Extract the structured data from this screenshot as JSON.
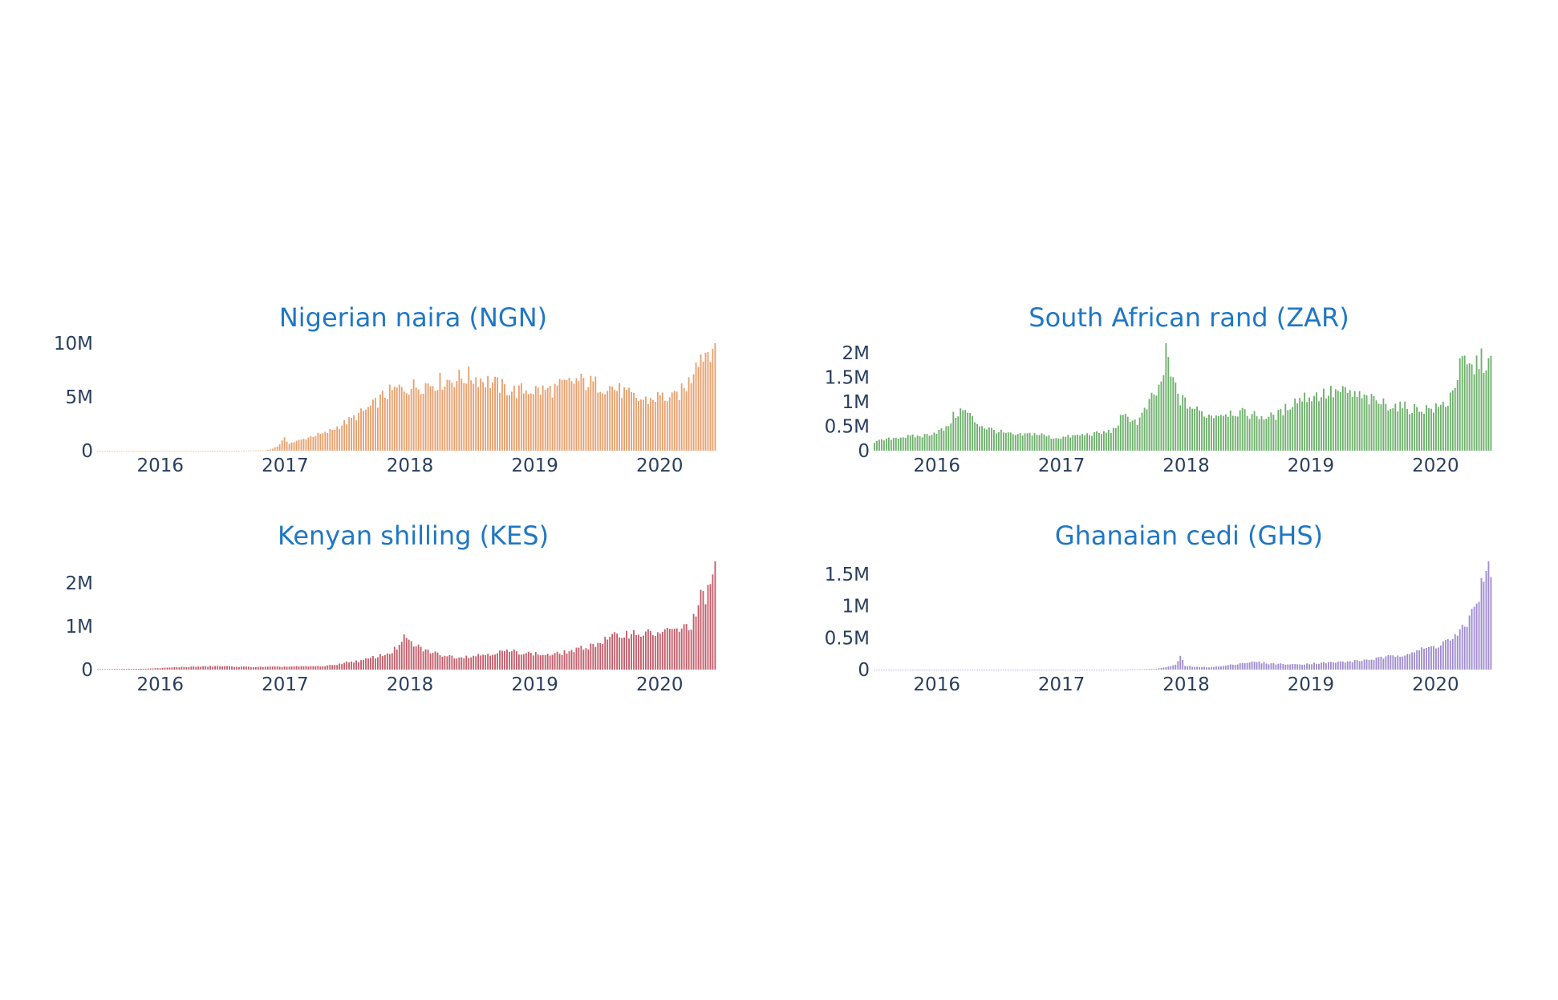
{
  "chart_data": [
    {
      "type": "bar",
      "title": "Nigerian naira (NGN)",
      "color": "#e8a06e",
      "x_start": "2015-07",
      "x_interval": "week",
      "xlim": [
        "2015-07",
        "2020-08"
      ],
      "ylim": [
        0,
        10000000
      ],
      "x_ticks": [
        "2016",
        "2017",
        "2018",
        "2019",
        "2020"
      ],
      "y_ticks": [
        {
          "value": 0,
          "label": "0"
        },
        {
          "value": 5000000,
          "label": "5M"
        },
        {
          "value": 10000000,
          "label": "10M"
        }
      ],
      "anchors": [
        [
          0,
          0
        ],
        [
          60,
          0
        ],
        [
          70,
          25000
        ],
        [
          72,
          120000
        ],
        [
          75,
          400000
        ],
        [
          78,
          1100000
        ],
        [
          80,
          700000
        ],
        [
          85,
          1000000
        ],
        [
          90,
          1400000
        ],
        [
          95,
          1600000
        ],
        [
          100,
          2200000
        ],
        [
          105,
          2800000
        ],
        [
          110,
          3500000
        ],
        [
          115,
          4200000
        ],
        [
          120,
          5200000
        ],
        [
          125,
          5700000
        ],
        [
          130,
          5900000
        ],
        [
          135,
          6100000
        ],
        [
          140,
          6300000
        ],
        [
          145,
          6500000
        ],
        [
          150,
          6700000
        ],
        [
          155,
          6900000
        ],
        [
          160,
          6700000
        ],
        [
          165,
          6300000
        ],
        [
          170,
          5800000
        ],
        [
          175,
          5500000
        ],
        [
          180,
          5700000
        ],
        [
          185,
          5600000
        ],
        [
          190,
          5700000
        ],
        [
          195,
          6100000
        ],
        [
          200,
          6500000
        ],
        [
          205,
          6300000
        ],
        [
          210,
          6100000
        ],
        [
          215,
          5900000
        ],
        [
          220,
          5400000
        ],
        [
          225,
          4800000
        ],
        [
          230,
          4700000
        ],
        [
          235,
          5100000
        ],
        [
          240,
          4800000
        ],
        [
          245,
          5700000
        ],
        [
          248,
          6800000
        ],
        [
          250,
          8800000
        ],
        [
          253,
          9000000
        ],
        [
          256,
          9600000
        ],
        [
          258,
          10100000
        ]
      ],
      "grid": false
    },
    {
      "type": "bar",
      "title": "South African rand (ZAR)",
      "color": "#6db06b",
      "x_start": "2015-07",
      "x_interval": "week",
      "xlim": [
        "2015-07",
        "2020-08"
      ],
      "ylim": [
        0,
        2200000
      ],
      "x_ticks": [
        "2016",
        "2017",
        "2018",
        "2019",
        "2020"
      ],
      "y_ticks": [
        {
          "value": 0,
          "label": "0"
        },
        {
          "value": 500000,
          "label": "0.5M"
        },
        {
          "value": 1000000,
          "label": "1M"
        },
        {
          "value": 1500000,
          "label": "1.5M"
        },
        {
          "value": 2000000,
          "label": "2M"
        }
      ],
      "anchors": [
        [
          0,
          180000
        ],
        [
          10,
          280000
        ],
        [
          20,
          300000
        ],
        [
          30,
          450000
        ],
        [
          33,
          700000
        ],
        [
          36,
          820000
        ],
        [
          39,
          780000
        ],
        [
          42,
          600000
        ],
        [
          46,
          480000
        ],
        [
          50,
          420000
        ],
        [
          55,
          350000
        ],
        [
          60,
          310000
        ],
        [
          66,
          350000
        ],
        [
          70,
          330000
        ],
        [
          75,
          260000
        ],
        [
          80,
          280000
        ],
        [
          85,
          310000
        ],
        [
          90,
          340000
        ],
        [
          95,
          360000
        ],
        [
          100,
          420000
        ],
        [
          103,
          650000
        ],
        [
          106,
          700000
        ],
        [
          110,
          580000
        ],
        [
          113,
          800000
        ],
        [
          116,
          1050000
        ],
        [
          119,
          1250000
        ],
        [
          121,
          1600000
        ],
        [
          122,
          2200000
        ],
        [
          124,
          1500000
        ],
        [
          126,
          1300000
        ],
        [
          128,
          1050000
        ],
        [
          130,
          980000
        ],
        [
          135,
          820000
        ],
        [
          140,
          720000
        ],
        [
          145,
          760000
        ],
        [
          150,
          800000
        ],
        [
          155,
          760000
        ],
        [
          160,
          720000
        ],
        [
          165,
          680000
        ],
        [
          170,
          760000
        ],
        [
          175,
          1000000
        ],
        [
          180,
          1100000
        ],
        [
          185,
          1130000
        ],
        [
          190,
          1180000
        ],
        [
          195,
          1200000
        ],
        [
          200,
          1150000
        ],
        [
          205,
          1070000
        ],
        [
          210,
          1000000
        ],
        [
          215,
          950000
        ],
        [
          220,
          900000
        ],
        [
          225,
          860000
        ],
        [
          230,
          860000
        ],
        [
          235,
          860000
        ],
        [
          240,
          1000000
        ],
        [
          243,
          1400000
        ],
        [
          246,
          1800000
        ],
        [
          250,
          1650000
        ],
        [
          253,
          1850000
        ],
        [
          256,
          1820000
        ],
        [
          258,
          1800000
        ]
      ],
      "grid": false
    },
    {
      "type": "bar",
      "title": "Kenyan shilling (KES)",
      "color": "#c45d6a",
      "x_start": "2015-07",
      "x_interval": "week",
      "xlim": [
        "2015-07",
        "2020-08"
      ],
      "ylim": [
        0,
        2500000
      ],
      "x_ticks": [
        "2016",
        "2017",
        "2018",
        "2019",
        "2020"
      ],
      "y_ticks": [
        {
          "value": 0,
          "label": "0"
        },
        {
          "value": 1000000,
          "label": "1M"
        },
        {
          "value": 2000000,
          "label": "2M"
        }
      ],
      "anchors": [
        [
          0,
          10000
        ],
        [
          20,
          20000
        ],
        [
          35,
          60000
        ],
        [
          50,
          80000
        ],
        [
          65,
          60000
        ],
        [
          80,
          70000
        ],
        [
          95,
          80000
        ],
        [
          100,
          120000
        ],
        [
          105,
          180000
        ],
        [
          110,
          200000
        ],
        [
          115,
          280000
        ],
        [
          120,
          350000
        ],
        [
          123,
          420000
        ],
        [
          126,
          550000
        ],
        [
          128,
          720000
        ],
        [
          130,
          650000
        ],
        [
          133,
          540000
        ],
        [
          136,
          470000
        ],
        [
          140,
          390000
        ],
        [
          145,
          330000
        ],
        [
          150,
          290000
        ],
        [
          155,
          310000
        ],
        [
          160,
          340000
        ],
        [
          165,
          380000
        ],
        [
          170,
          420000
        ],
        [
          175,
          410000
        ],
        [
          180,
          380000
        ],
        [
          185,
          350000
        ],
        [
          190,
          340000
        ],
        [
          195,
          400000
        ],
        [
          200,
          450000
        ],
        [
          205,
          540000
        ],
        [
          210,
          630000
        ],
        [
          215,
          750000
        ],
        [
          220,
          820000
        ],
        [
          225,
          850000
        ],
        [
          230,
          830000
        ],
        [
          235,
          850000
        ],
        [
          240,
          900000
        ],
        [
          245,
          950000
        ],
        [
          248,
          1050000
        ],
        [
          250,
          1250000
        ],
        [
          252,
          1650000
        ],
        [
          254,
          1600000
        ],
        [
          256,
          2100000
        ],
        [
          258,
          2450000
        ]
      ],
      "grid": false
    },
    {
      "type": "bar",
      "title": "Ghanaian cedi (GHS)",
      "color": "#a08cd0",
      "x_start": "2015-07",
      "x_interval": "week",
      "xlim": [
        "2015-07",
        "2020-08"
      ],
      "ylim": [
        0,
        1700000
      ],
      "x_ticks": [
        "2016",
        "2017",
        "2018",
        "2019",
        "2020"
      ],
      "y_ticks": [
        {
          "value": 0,
          "label": "0"
        },
        {
          "value": 500000,
          "label": "0.5M"
        },
        {
          "value": 1000000,
          "label": "1M"
        },
        {
          "value": 1500000,
          "label": "1.5M"
        }
      ],
      "anchors": [
        [
          0,
          0
        ],
        [
          100,
          0
        ],
        [
          110,
          3000
        ],
        [
          118,
          12000
        ],
        [
          122,
          40000
        ],
        [
          126,
          70000
        ],
        [
          128,
          210000
        ],
        [
          130,
          60000
        ],
        [
          135,
          40000
        ],
        [
          140,
          40000
        ],
        [
          145,
          50000
        ],
        [
          150,
          80000
        ],
        [
          155,
          110000
        ],
        [
          160,
          120000
        ],
        [
          165,
          95000
        ],
        [
          170,
          90000
        ],
        [
          175,
          80000
        ],
        [
          180,
          90000
        ],
        [
          185,
          100000
        ],
        [
          190,
          110000
        ],
        [
          195,
          120000
        ],
        [
          200,
          130000
        ],
        [
          205,
          150000
        ],
        [
          210,
          170000
        ],
        [
          215,
          200000
        ],
        [
          220,
          230000
        ],
        [
          225,
          280000
        ],
        [
          230,
          320000
        ],
        [
          235,
          370000
        ],
        [
          238,
          430000
        ],
        [
          241,
          470000
        ],
        [
          244,
          530000
        ],
        [
          246,
          620000
        ],
        [
          248,
          740000
        ],
        [
          250,
          900000
        ],
        [
          252,
          1100000
        ],
        [
          254,
          1300000
        ],
        [
          256,
          1480000
        ],
        [
          258,
          1650000
        ]
      ],
      "grid": false
    }
  ]
}
